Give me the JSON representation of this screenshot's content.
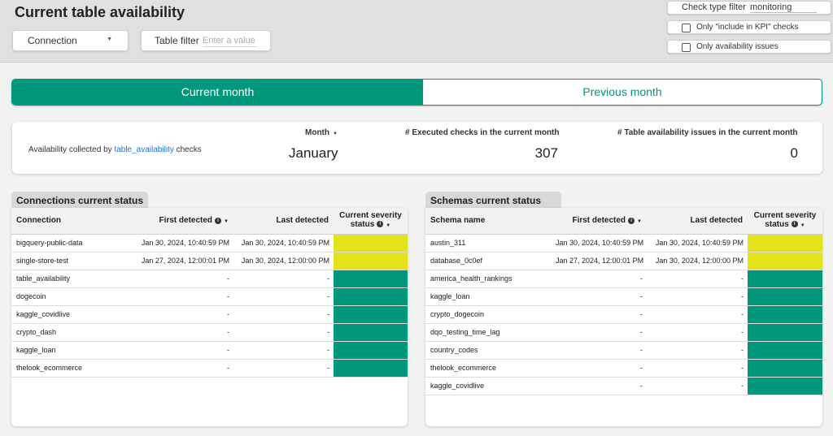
{
  "page": {
    "title": "Current table availability"
  },
  "filters": {
    "connection_label": "Connection",
    "table_filter_label": "Table filter",
    "table_filter_placeholder": "Enter a value",
    "check_type_label": "Check type filter",
    "check_type_value": "monitoring",
    "only_kpi_label": "Only \"include in KPI\" checks",
    "only_issues_label": "Only availability issues"
  },
  "tabs": {
    "current": "Current month",
    "previous": "Previous month"
  },
  "summary": {
    "availability_prefix": "Availability collected by ",
    "availability_link": "table_availability",
    "availability_suffix": " checks",
    "month_label": "Month",
    "month_value": "January",
    "executed_label": "# Executed checks in the current month",
    "executed_value": "307",
    "issues_label": "# Table availability issues in the current month",
    "issues_value": "0"
  },
  "colors": {
    "warning": "#e4e31a",
    "ok": "#00977a"
  },
  "connections": {
    "title": "Connections current status",
    "headers": {
      "name": "Connection",
      "first": "First detected",
      "last": "Last detected",
      "severity_line1": "Current severity",
      "severity_line2": "status"
    },
    "rows": [
      {
        "name": "bigquery-public-data",
        "first": "Jan 30, 2024, 10:40:59 PM",
        "last": "Jan 30, 2024, 10:40:59 PM",
        "status": "warning"
      },
      {
        "name": "single-store-test",
        "first": "Jan 27, 2024, 12:00:01 PM",
        "last": "Jan 30, 2024, 12:00:00 PM",
        "status": "warning"
      },
      {
        "name": "table_availability",
        "first": "-",
        "last": "-",
        "status": "ok"
      },
      {
        "name": "dogecoin",
        "first": "-",
        "last": "-",
        "status": "ok"
      },
      {
        "name": "kaggle_covidlive",
        "first": "-",
        "last": "-",
        "status": "ok"
      },
      {
        "name": "crypto_dash",
        "first": "-",
        "last": "-",
        "status": "ok"
      },
      {
        "name": "kaggle_loan",
        "first": "-",
        "last": "-",
        "status": "ok"
      },
      {
        "name": "thelook_ecommerce",
        "first": "-",
        "last": "-",
        "status": "ok"
      }
    ]
  },
  "schemas": {
    "title": "Schemas current status",
    "headers": {
      "name": "Schema name",
      "first": "First detected",
      "last": "Last detected",
      "severity_line1": "Current severity",
      "severity_line2": "status"
    },
    "rows": [
      {
        "name": "austin_311",
        "first": "Jan 30, 2024, 10:40:59 PM",
        "last": "Jan 30, 2024, 10:40:59 PM",
        "status": "warning"
      },
      {
        "name": "database_0c0ef",
        "first": "Jan 27, 2024, 12:00:01 PM",
        "last": "Jan 30, 2024, 12:00:00 PM",
        "status": "warning"
      },
      {
        "name": "america_health_rankings",
        "first": "-",
        "last": "-",
        "status": "ok"
      },
      {
        "name": "kaggle_loan",
        "first": "-",
        "last": "-",
        "status": "ok"
      },
      {
        "name": "crypto_dogecoin",
        "first": "-",
        "last": "-",
        "status": "ok"
      },
      {
        "name": "dqo_testing_time_lag",
        "first": "-",
        "last": "-",
        "status": "ok"
      },
      {
        "name": "country_codes",
        "first": "-",
        "last": "-",
        "status": "ok"
      },
      {
        "name": "thelook_ecommerce",
        "first": "-",
        "last": "-",
        "status": "ok"
      },
      {
        "name": "kaggle_covidlive",
        "first": "-",
        "last": "-",
        "status": "ok"
      }
    ]
  }
}
